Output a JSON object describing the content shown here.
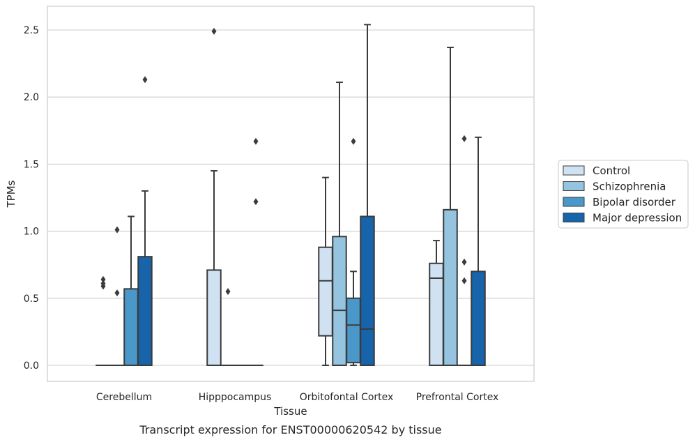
{
  "chart_data": {
    "type": "box",
    "title": "",
    "caption": "Transcript expression for ENST00000620542 by tissue",
    "xlabel": "Tissue",
    "ylabel": "TPMs",
    "ylim": [
      -0.12,
      2.67
    ],
    "yticks": [
      0.0,
      0.5,
      1.0,
      1.5,
      2.0,
      2.5
    ],
    "ytick_labels": [
      "0.0",
      "0.5",
      "1.0",
      "1.5",
      "2.0",
      "2.5"
    ],
    "grid": "horizontal",
    "legend_position": "right",
    "categories": [
      "Cerebellum",
      "Hipppocampus",
      "Orbitofontal Cortex",
      "Prefrontal Cortex"
    ],
    "series": [
      {
        "name": "Control",
        "color": "#d0e1f2",
        "boxes": [
          {
            "q1": 0.0,
            "median": 0.0,
            "q3": 0.0,
            "whisker_low": 0.0,
            "whisker_high": 0.0,
            "outliers": [
              0.64,
              0.61,
              0.59
            ]
          },
          {
            "q1": 0.0,
            "median": 0.0,
            "q3": 0.71,
            "whisker_low": 0.0,
            "whisker_high": 1.45,
            "outliers": [
              2.49
            ]
          },
          {
            "q1": 0.22,
            "median": 0.63,
            "q3": 0.88,
            "whisker_low": 0.0,
            "whisker_high": 1.4,
            "outliers": []
          },
          {
            "q1": 0.0,
            "median": 0.65,
            "q3": 0.76,
            "whisker_low": 0.0,
            "whisker_high": 0.93,
            "outliers": []
          }
        ]
      },
      {
        "name": "Schizophrenia",
        "color": "#94c4df",
        "boxes": [
          {
            "q1": 0.0,
            "median": 0.0,
            "q3": 0.0,
            "whisker_low": 0.0,
            "whisker_high": 0.0,
            "outliers": [
              1.01,
              0.54
            ]
          },
          {
            "q1": 0.0,
            "median": 0.0,
            "q3": 0.0,
            "whisker_low": 0.0,
            "whisker_high": 0.0,
            "outliers": [
              0.55
            ]
          },
          {
            "q1": 0.0,
            "median": 0.41,
            "q3": 0.96,
            "whisker_low": 0.0,
            "whisker_high": 2.11,
            "outliers": []
          },
          {
            "q1": 0.0,
            "median": 0.0,
            "q3": 1.16,
            "whisker_low": 0.0,
            "whisker_high": 2.37,
            "outliers": []
          }
        ]
      },
      {
        "name": "Bipolar disorder",
        "color": "#4a98c9",
        "boxes": [
          {
            "q1": 0.0,
            "median": 0.0,
            "q3": 0.57,
            "whisker_low": 0.0,
            "whisker_high": 1.11,
            "outliers": []
          },
          {
            "q1": 0.0,
            "median": 0.0,
            "q3": 0.0,
            "whisker_low": 0.0,
            "whisker_high": 0.0,
            "outliers": []
          },
          {
            "q1": 0.02,
            "median": 0.3,
            "q3": 0.5,
            "whisker_low": 0.0,
            "whisker_high": 0.7,
            "outliers": [
              1.67
            ]
          },
          {
            "q1": 0.0,
            "median": 0.0,
            "q3": 0.0,
            "whisker_low": 0.0,
            "whisker_high": 0.0,
            "outliers": [
              1.69,
              0.77,
              0.63
            ]
          }
        ]
      },
      {
        "name": "Major depression",
        "color": "#1764ab",
        "boxes": [
          {
            "q1": 0.0,
            "median": 0.0,
            "q3": 0.81,
            "whisker_low": 0.0,
            "whisker_high": 1.3,
            "outliers": [
              2.13
            ]
          },
          {
            "q1": 0.0,
            "median": 0.0,
            "q3": 0.0,
            "whisker_low": 0.0,
            "whisker_high": 0.0,
            "outliers": [
              1.67,
              1.22
            ]
          },
          {
            "q1": 0.0,
            "median": 0.27,
            "q3": 1.11,
            "whisker_low": 0.0,
            "whisker_high": 2.54,
            "outliers": []
          },
          {
            "q1": 0.0,
            "median": 0.0,
            "q3": 0.7,
            "whisker_low": 0.0,
            "whisker_high": 1.7,
            "outliers": []
          }
        ]
      }
    ]
  }
}
